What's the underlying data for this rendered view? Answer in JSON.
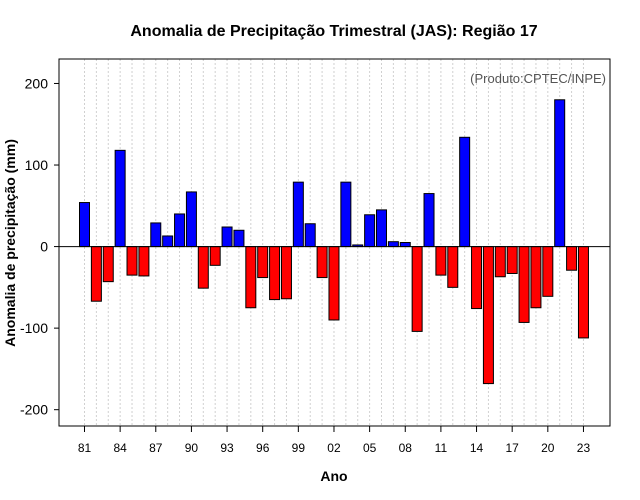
{
  "chart_data": {
    "type": "bar",
    "title": "Anomalia de Precipitação Trimestral (JAS): Região 17",
    "xlabel": "Ano",
    "ylabel": "Anomalia de precipitação (mm)",
    "note": "(Produto:CPTEC/INPE)",
    "ylim": [
      -220,
      230
    ],
    "yticks": [
      "200",
      "100",
      "0",
      "-100",
      "-200"
    ],
    "ytick_values": [
      200,
      100,
      0,
      -100,
      -200
    ],
    "grid": true,
    "colors": {
      "positive": "#0000ff",
      "negative": "#ff0000"
    },
    "categories": [
      "81",
      "82",
      "83",
      "84",
      "85",
      "86",
      "87",
      "88",
      "89",
      "90",
      "91",
      "92",
      "93",
      "94",
      "95",
      "96",
      "97",
      "98",
      "99",
      "00",
      "01",
      "02",
      "03",
      "04",
      "05",
      "06",
      "07",
      "08",
      "09",
      "10",
      "11",
      "12",
      "13",
      "14",
      "15",
      "16",
      "17",
      "18",
      "19",
      "20",
      "21",
      "22",
      "23"
    ],
    "xtick_labels": [
      "81",
      "84",
      "87",
      "90",
      "93",
      "96",
      "99",
      "02",
      "05",
      "08",
      "11",
      "14",
      "17",
      "20",
      "23"
    ],
    "values": [
      54,
      -67,
      -43,
      118,
      -35,
      -36,
      29,
      13,
      40,
      67,
      -51,
      -23,
      24,
      20,
      -75,
      -38,
      -65,
      -64,
      79,
      28,
      -38,
      -90,
      79,
      2,
      39,
      45,
      6,
      5,
      -104,
      65,
      -35,
      -50,
      134,
      -76,
      -168,
      -37,
      -33,
      -93,
      -75,
      -61,
      180,
      -29,
      -112
    ]
  }
}
